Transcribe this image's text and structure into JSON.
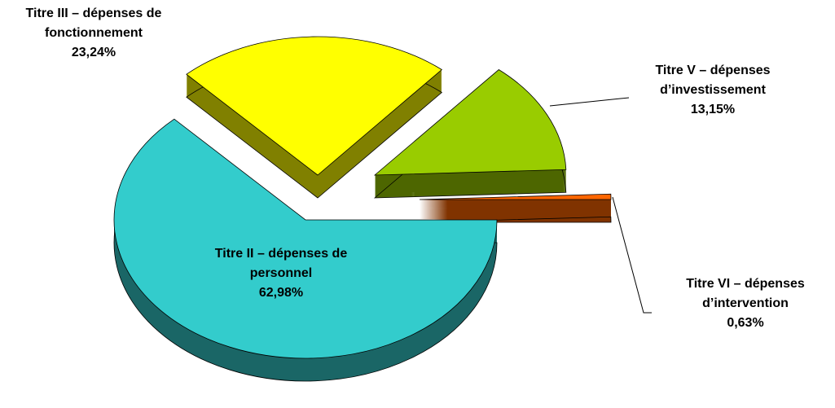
{
  "chart_data": {
    "type": "pie",
    "categories": [
      "Titre II – dépenses de personnel",
      "Titre III – dépenses de fonctionnement",
      "Titre V – dépenses d’investissement",
      "Titre VI – dépenses d’intervention"
    ],
    "values": [
      62.98,
      23.24,
      13.15,
      0.63
    ],
    "value_labels": [
      "62,98%",
      "23,24%",
      "13,15%",
      "0,63%"
    ],
    "colors": [
      "#33cccc",
      "#ffff00",
      "#99cc00",
      "#ff6600"
    ]
  }
}
